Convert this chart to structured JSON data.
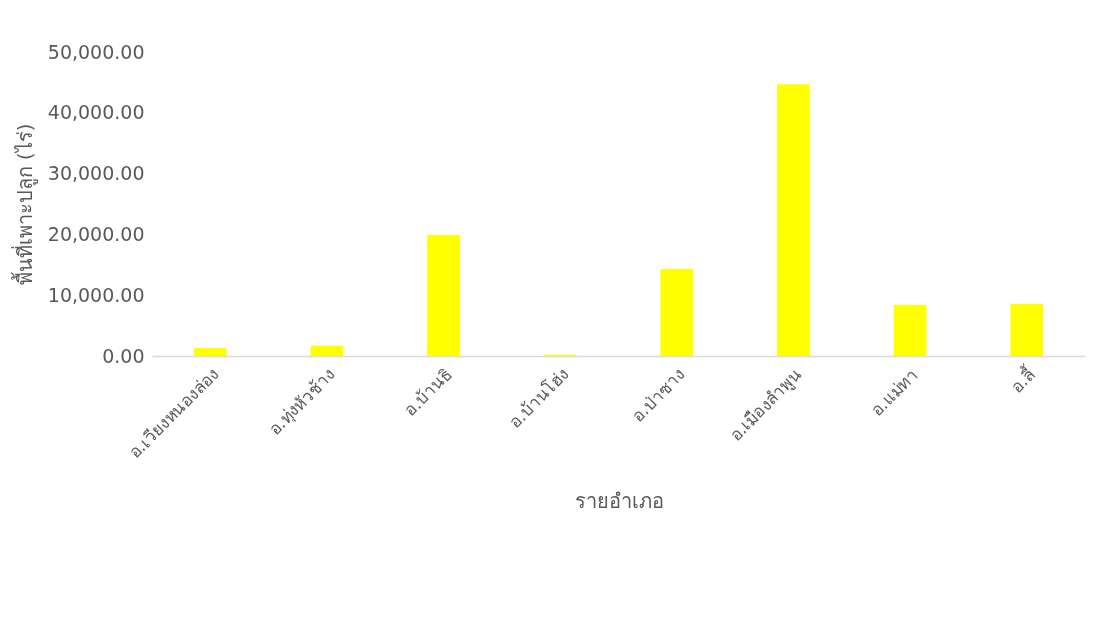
{
  "chart_data": {
    "type": "bar",
    "xlabel": "รายอำเภอ",
    "ylabel": "พื้นที่เพาะปลูก (ไร่)",
    "categories": [
      "อ.เวียงหนองล่อง",
      "อ.ทุ่งหัวช้าง",
      "อ.บ้านธิ",
      "อ.บ้านโฮ่ง",
      "อ.ป่าซาง",
      "อ.เมืองลำพูน",
      "อ.แม่ทา",
      "อ.ลี้"
    ],
    "values": [
      1300,
      1700,
      19900,
      200,
      14300,
      44700,
      8400,
      8600
    ],
    "color": "#ffff00",
    "ylim": [
      0,
      50000
    ],
    "yticks": [
      {
        "value": 0,
        "label": "0.00"
      },
      {
        "value": 10000,
        "label": "10,000.00"
      },
      {
        "value": 20000,
        "label": "20,000.00"
      },
      {
        "value": 30000,
        "label": "30,000.00"
      },
      {
        "value": 40000,
        "label": "40,000.00"
      },
      {
        "value": 50000,
        "label": "50,000.00"
      }
    ]
  }
}
